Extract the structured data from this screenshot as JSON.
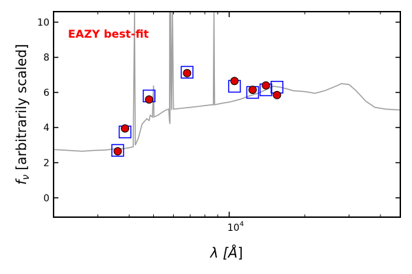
{
  "chart_data": {
    "type": "scatter",
    "annotation": {
      "text": "EAZY best-fit",
      "color": "#ff0000"
    },
    "ylabel": "f_ν [arbitrarily scaled]",
    "ylabel_main": "f",
    "ylabel_sub": "ν",
    "ylabel_rest": " [arbitrarily scaled]",
    "xlabel": "λ [Å]",
    "xlabel_main": "λ [",
    "xlabel_unit": "Å",
    "xlabel_end": "]",
    "x_scale": "log",
    "xlim": [
      2000,
      48000
    ],
    "ylim": [
      -1.1,
      10.6
    ],
    "x_ticks": [
      {
        "label_base": "10",
        "label_exp": "4",
        "value": 10000
      }
    ],
    "y_ticks": [
      0,
      2,
      4,
      6,
      8,
      10
    ],
    "colors": {
      "template": "#a0a0a0",
      "model_box": "#0000ff",
      "observed_fill": "#dd0000",
      "observed_edge": "#000000",
      "annotation": "#ff0000"
    },
    "series": [
      {
        "kind": "model_photometry",
        "x": [
          3600,
          3850,
          4800,
          6800,
          10500,
          12400,
          14000,
          15500
        ],
        "y": [
          2.7,
          3.75,
          5.8,
          7.15,
          6.35,
          6.0,
          6.15,
          6.3
        ]
      },
      {
        "kind": "observed_photometry",
        "x": [
          3600,
          3850,
          4800,
          6800,
          10500,
          12400,
          14000,
          15500
        ],
        "y": [
          2.65,
          3.95,
          5.6,
          7.1,
          6.65,
          6.15,
          6.4,
          5.85
        ]
      },
      {
        "kind": "template_sed",
        "points": [
          [
            2000,
            2.75
          ],
          [
            2300,
            2.7
          ],
          [
            2600,
            2.65
          ],
          [
            2900,
            2.7
          ],
          [
            3200,
            2.72
          ],
          [
            3500,
            2.78
          ],
          [
            3800,
            2.8
          ],
          [
            4000,
            2.85
          ],
          [
            4150,
            2.9
          ],
          [
            4200,
            10.6
          ],
          [
            4230,
            3.0
          ],
          [
            4350,
            3.4
          ],
          [
            4500,
            4.2
          ],
          [
            4700,
            4.5
          ],
          [
            4800,
            4.4
          ],
          [
            4850,
            4.7
          ],
          [
            4950,
            4.6
          ],
          [
            5000,
            6.4
          ],
          [
            5020,
            4.6
          ],
          [
            5200,
            4.7
          ],
          [
            5450,
            4.9
          ],
          [
            5600,
            5.0
          ],
          [
            5750,
            5.05
          ],
          [
            5790,
            4.3
          ],
          [
            5800,
            10.6
          ],
          [
            5810,
            4.2
          ],
          [
            5850,
            10.6
          ],
          [
            5900,
            5.0
          ],
          [
            5950,
            10.6
          ],
          [
            6000,
            5.05
          ],
          [
            6500,
            5.1
          ],
          [
            7000,
            5.15
          ],
          [
            7500,
            5.2
          ],
          [
            8000,
            5.25
          ],
          [
            8500,
            5.3
          ],
          [
            8650,
            5.3
          ],
          [
            8700,
            10.6
          ],
          [
            8750,
            5.3
          ],
          [
            9500,
            5.4
          ],
          [
            10000,
            5.45
          ],
          [
            11000,
            5.6
          ],
          [
            12000,
            5.8
          ],
          [
            13000,
            5.95
          ],
          [
            14000,
            6.15
          ],
          [
            15000,
            6.35
          ],
          [
            16000,
            6.3
          ],
          [
            17000,
            6.2
          ],
          [
            18000,
            6.1
          ],
          [
            20000,
            6.05
          ],
          [
            22000,
            5.95
          ],
          [
            24000,
            6.1
          ],
          [
            26000,
            6.3
          ],
          [
            28000,
            6.5
          ],
          [
            30000,
            6.45
          ],
          [
            32000,
            6.1
          ],
          [
            35000,
            5.5
          ],
          [
            38000,
            5.15
          ],
          [
            42000,
            5.05
          ],
          [
            48000,
            5.0
          ]
        ]
      }
    ]
  }
}
